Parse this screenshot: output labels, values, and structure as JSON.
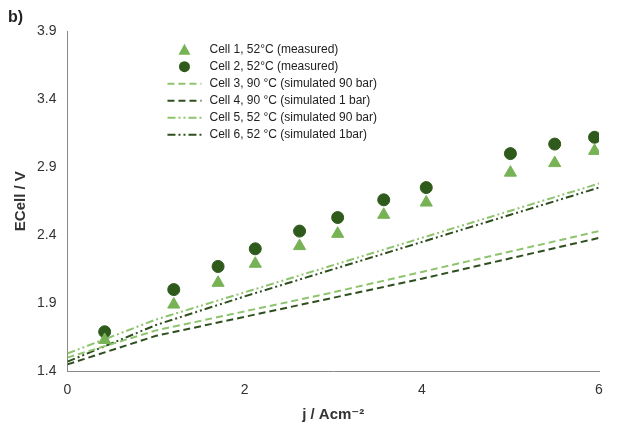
{
  "chart_data": {
    "type": "scatter",
    "title": "b)",
    "x_label": "j / Acm⁻²",
    "y_label": "ECell / V",
    "xlim": [
      0,
      6
    ],
    "xticks": [
      0,
      2,
      4,
      6
    ],
    "ylim": [
      1.4,
      3.9
    ],
    "yticks": [
      1.4,
      1.9,
      2.4,
      2.9,
      3.4,
      3.9
    ],
    "grid": false,
    "legend": "upper left",
    "series": [
      {
        "name": "Cell 1, 52°C (measured)",
        "type": "scatter",
        "marker": "triangle",
        "color": "#77b255",
        "x": [
          0.42,
          1.2,
          1.7,
          2.12,
          2.62,
          3.05,
          3.57,
          4.05,
          5.0,
          5.5,
          5.95
        ],
        "values": [
          1.63,
          1.89,
          2.05,
          2.19,
          2.32,
          2.41,
          2.55,
          2.64,
          2.86,
          2.93,
          3.02
        ]
      },
      {
        "name": "Cell 2, 52°C (measured)",
        "type": "scatter",
        "marker": "circle",
        "color": "#2e5a1c",
        "x": [
          0.42,
          1.2,
          1.7,
          2.12,
          2.62,
          3.05,
          3.57,
          4.05,
          5.0,
          5.5,
          5.95
        ],
        "values": [
          1.69,
          2.0,
          2.17,
          2.3,
          2.43,
          2.53,
          2.66,
          2.75,
          3.0,
          3.07,
          3.12
        ]
      },
      {
        "name": "Cell 3, 90 °C (simulated 90 bar)",
        "type": "line",
        "line_style": "dashed",
        "color": "#8fc46e",
        "x": [
          0,
          1,
          2,
          3,
          4,
          5,
          6
        ],
        "values": [
          1.5,
          1.7,
          1.84,
          1.98,
          2.13,
          2.28,
          2.43
        ]
      },
      {
        "name": "Cell 4, 90 °C (simulated 1 bar)",
        "type": "line",
        "line_style": "dashed",
        "color": "#2f4f1f",
        "x": [
          0,
          1,
          2,
          3,
          4,
          5,
          6
        ],
        "values": [
          1.45,
          1.66,
          1.8,
          1.94,
          2.08,
          2.23,
          2.38
        ]
      },
      {
        "name": "Cell 5, 52 °C (simulated 90 bar)",
        "type": "line",
        "line_style": "dashdotdot",
        "color": "#8fc46e",
        "x": [
          0,
          1,
          2,
          3,
          4,
          5,
          6
        ],
        "values": [
          1.53,
          1.78,
          1.98,
          2.18,
          2.38,
          2.58,
          2.78
        ]
      },
      {
        "name": "Cell 6, 52 °C (simulated 1bar)",
        "type": "line",
        "line_style": "dashdotdot",
        "color": "#2f4f1f",
        "x": [
          0,
          1,
          2,
          3,
          4,
          5,
          6
        ],
        "values": [
          1.47,
          1.74,
          1.95,
          2.15,
          2.35,
          2.55,
          2.75
        ]
      }
    ]
  }
}
